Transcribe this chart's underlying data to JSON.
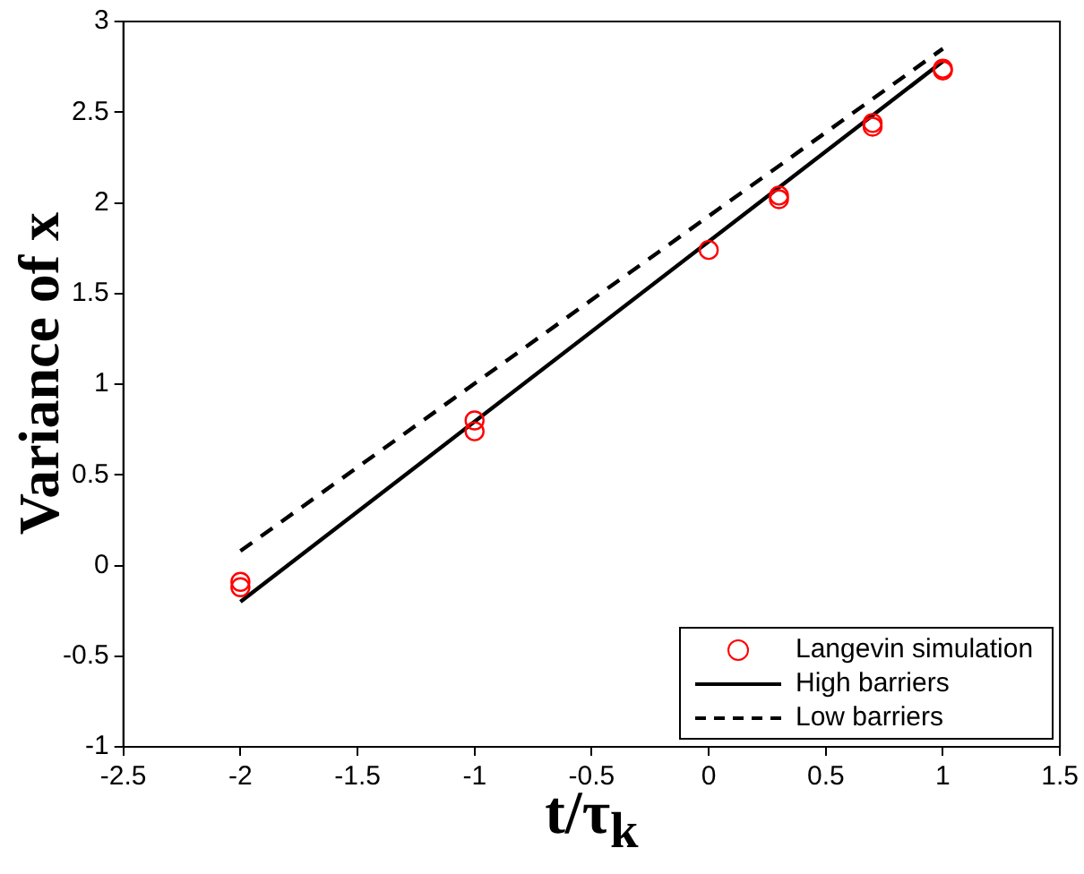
{
  "chart_data": {
    "type": "scatter",
    "xlabel": "t/τ$_{k}$",
    "ylabel": "Variance of x",
    "xlim": [
      -2.5,
      1.5
    ],
    "xticks": [
      -2.5,
      -2,
      -1.5,
      -1,
      -0.5,
      0,
      0.5,
      1,
      1.5
    ],
    "ylim": [
      -1,
      3
    ],
    "yticks": [
      -1,
      -0.5,
      0,
      0.5,
      1,
      1.5,
      2,
      2.5,
      3
    ],
    "grid": false,
    "legend": "bottom right",
    "series": [
      {
        "name": "Langevin simulation",
        "marker": "circle",
        "color": "#ff0000",
        "x": [
          -2,
          -2,
          -1,
          -1,
          0,
          0.3,
          0.3,
          0.7,
          0.7,
          1,
          1
        ],
        "values": [
          -0.09,
          -0.12,
          0.8,
          0.74,
          1.74,
          2.04,
          2.02,
          2.44,
          2.42,
          2.74,
          2.73
        ]
      },
      {
        "name": "High barriers",
        "type": "line",
        "marker": "none",
        "line_style": "solid",
        "color": "#000000",
        "x": [
          -2,
          1
        ],
        "values": [
          -0.2,
          2.78
        ]
      },
      {
        "name": "Low barriers",
        "type": "line",
        "marker": "none",
        "line_style": "dashed",
        "color": "#000000",
        "x": [
          -2,
          1
        ],
        "values": [
          0.08,
          2.85
        ]
      }
    ]
  }
}
